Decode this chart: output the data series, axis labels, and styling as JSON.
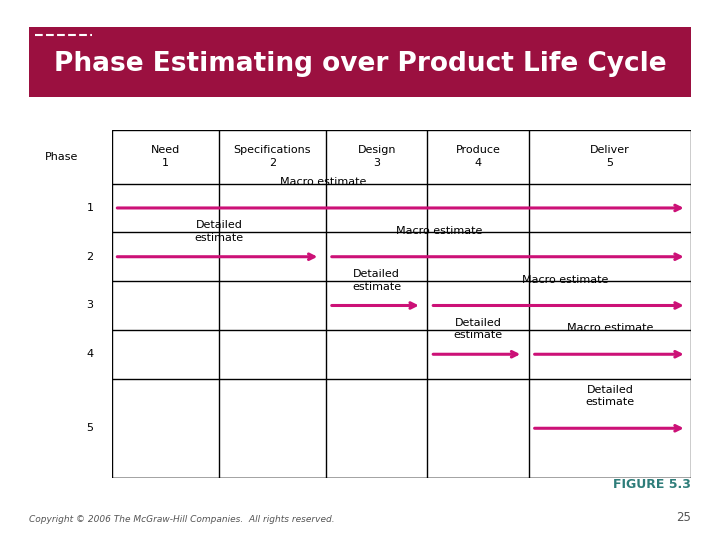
{
  "title": "Phase Estimating over Product Life Cycle",
  "title_bg_left": "#6B0020",
  "title_bg_right": "#9B1040",
  "title_text_color": "#FFFFFF",
  "figure_label": "FIGURE 5.3",
  "figure_label_color": "#2E7D7A",
  "copyright_text": "Copyright © 2006 The McGraw-Hill Companies.  All rights reserved.",
  "page_number": "25",
  "footer_text_color": "#555555",
  "bg_color": "#FFFFFF",
  "arrow_color": "#CC1177",
  "col_headers": [
    "Need\n1",
    "Specifications\n2",
    "Design\n3",
    "Produce\n4",
    "Deliver\n5"
  ],
  "row_labels": [
    "1",
    "2",
    "3",
    "4",
    "5"
  ],
  "phase_label": "Phase",
  "table_border_color": "#000000",
  "shadow_color": "#BBBBBB"
}
